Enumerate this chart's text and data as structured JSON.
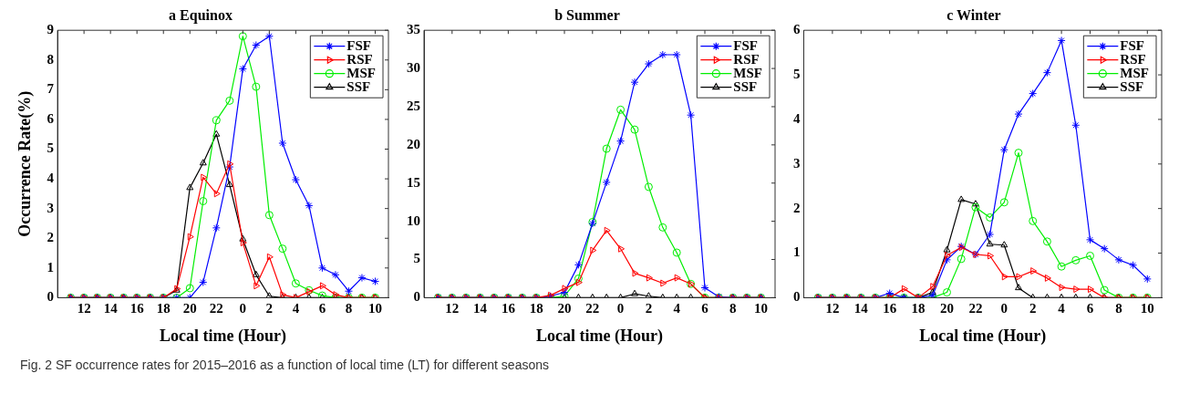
{
  "chart_data": [
    {
      "type": "line",
      "title": "a Equinox",
      "xlabel": "Local time (Hour)",
      "ylabel": "Occurrence Rate(%)",
      "x": [
        "--01-01T11:00",
        "--01-01T12:00",
        "--01-01T13:00",
        "--01-01T14:00",
        "--01-01T15:00",
        "--01-01T16:00",
        "--01-01T17:00",
        "--01-01T18:00",
        "--01-01T19:00",
        "--01-01T20:00",
        "--01-01T21:00",
        "--01-01T22:00",
        "--01-01T23:00",
        "--01-02T00:00",
        "--01-02T01:00",
        "--01-02T02:00",
        "--01-02T03:00",
        "--01-02T04:00",
        "--01-02T05:00",
        "--01-02T06:00",
        "--01-02T07:00",
        "--01-02T08:00",
        "--01-02T09:00",
        "--01-02T10:00"
      ],
      "xlim": [
        "--01-01T10:00",
        "--01-02T11:00"
      ],
      "xticks": [
        {
          "value": "--01-01T12:00",
          "label": "12"
        },
        {
          "value": "--01-01T14:00",
          "label": "14"
        },
        {
          "value": "--01-01T16:00",
          "label": "16"
        },
        {
          "value": "--01-01T18:00",
          "label": "18"
        },
        {
          "value": "--01-01T20:00",
          "label": "20"
        },
        {
          "value": "--01-01T22:00",
          "label": "22"
        },
        {
          "value": "--01-02T00:00",
          "label": "0"
        },
        {
          "value": "--01-02T02:00",
          "label": "2"
        },
        {
          "value": "--01-02T04:00",
          "label": "4"
        },
        {
          "value": "--01-02T06:00",
          "label": "6"
        },
        {
          "value": "--01-02T08:00",
          "label": "8"
        },
        {
          "value": "--01-02T10:00",
          "label": "10"
        }
      ],
      "ylim": [
        0,
        9
      ],
      "yticks": [
        0,
        1,
        2,
        3,
        4,
        5,
        6,
        7,
        8,
        9
      ],
      "legend": "top right",
      "annotations": [
        "Fig. 2 SF occurrence rates for 2015–2016 as a function of local time (LT) for different seasons"
      ],
      "series": [
        {
          "name": "FSF",
          "color": "#0000ff",
          "marker": "cross",
          "values": [
            0,
            0,
            0,
            0,
            0,
            0,
            0,
            0,
            0,
            0,
            0.52,
            2.35,
            4.4,
            7.7,
            8.5,
            8.8,
            5.2,
            3.97,
            3.1,
            1.0,
            0.77,
            0.22,
            0.67,
            0.55
          ]
        },
        {
          "name": "RSF",
          "color": "#ff0000",
          "marker": "triangle",
          "values": [
            0,
            0,
            0,
            0,
            0,
            0,
            0,
            0,
            0.3,
            2.05,
            4.05,
            3.5,
            4.5,
            1.85,
            0.4,
            1.37,
            0.1,
            0,
            0.2,
            0.4,
            0.1,
            0,
            0,
            0
          ]
        },
        {
          "name": "MSF",
          "color": "#00ee00",
          "marker": "circle",
          "values": [
            0,
            0,
            0,
            0,
            0,
            0,
            0,
            0,
            0,
            0.32,
            3.25,
            5.97,
            6.63,
            8.8,
            7.1,
            2.78,
            1.65,
            0.48,
            0.25,
            0.07,
            0,
            0,
            0,
            0
          ]
        },
        {
          "name": "SSF",
          "color": "#000000",
          "marker": "triangle",
          "values": [
            0,
            0,
            0,
            0,
            0,
            0,
            0,
            0,
            0.25,
            3.7,
            4.53,
            5.5,
            3.8,
            1.97,
            0.77,
            0.05,
            0,
            0,
            0,
            0,
            0,
            0,
            0,
            0
          ]
        }
      ]
    },
    {
      "type": "line",
      "title": "b Summer",
      "xlabel": "Local time (Hour)",
      "x": [
        "--01-01T11:00",
        "--01-01T12:00",
        "--01-01T13:00",
        "--01-01T14:00",
        "--01-01T15:00",
        "--01-01T16:00",
        "--01-01T17:00",
        "--01-01T18:00",
        "--01-01T19:00",
        "--01-01T20:00",
        "--01-01T21:00",
        "--01-01T22:00",
        "--01-01T23:00",
        "--01-02T00:00",
        "--01-02T01:00",
        "--01-02T02:00",
        "--01-02T03:00",
        "--01-02T04:00",
        "--01-02T05:00",
        "--01-02T06:00",
        "--01-02T07:00",
        "--01-02T08:00",
        "--01-02T09:00",
        "--01-02T10:00"
      ],
      "xlim": [
        "--01-01T10:00",
        "--01-02T11:00"
      ],
      "xticks": [
        {
          "value": "--01-01T12:00",
          "label": "12"
        },
        {
          "value": "--01-01T14:00",
          "label": "14"
        },
        {
          "value": "--01-01T16:00",
          "label": "16"
        },
        {
          "value": "--01-01T18:00",
          "label": "18"
        },
        {
          "value": "--01-01T20:00",
          "label": "20"
        },
        {
          "value": "--01-01T22:00",
          "label": "22"
        },
        {
          "value": "--01-02T00:00",
          "label": "0"
        },
        {
          "value": "--01-02T02:00",
          "label": "2"
        },
        {
          "value": "--01-02T04:00",
          "label": "4"
        },
        {
          "value": "--01-02T06:00",
          "label": "6"
        },
        {
          "value": "--01-02T08:00",
          "label": "8"
        },
        {
          "value": "--01-02T10:00",
          "label": "10"
        }
      ],
      "ylim": [
        0,
        35
      ],
      "yticks": [
        0,
        5,
        10,
        15,
        20,
        25,
        30,
        35
      ],
      "legend": "top right",
      "series": [
        {
          "name": "FSF",
          "color": "#0000ff",
          "marker": "cross",
          "values": [
            0,
            0,
            0,
            0,
            0,
            0,
            0,
            0,
            0.2,
            0.7,
            4.3,
            9.7,
            15.1,
            20.5,
            28.2,
            30.6,
            31.8,
            31.8,
            23.9,
            1.3,
            0.1,
            0,
            0,
            0
          ]
        },
        {
          "name": "RSF",
          "color": "#ff0000",
          "marker": "triangle",
          "values": [
            0,
            0,
            0,
            0,
            0,
            0,
            0,
            0,
            0.3,
            1.2,
            2.0,
            6.2,
            8.8,
            6.4,
            3.2,
            2.6,
            1.9,
            2.6,
            1.8,
            0,
            0,
            0,
            0,
            0
          ]
        },
        {
          "name": "MSF",
          "color": "#00ee00",
          "marker": "circle",
          "values": [
            0,
            0,
            0,
            0,
            0,
            0,
            0,
            0,
            0,
            0.2,
            2.5,
            9.9,
            19.5,
            24.6,
            22.0,
            14.5,
            9.2,
            5.9,
            1.8,
            0,
            0,
            0,
            0,
            0
          ]
        },
        {
          "name": "SSF",
          "color": "#000000",
          "marker": "triangle",
          "values": [
            0,
            0,
            0,
            0,
            0,
            0,
            0,
            0,
            0,
            0,
            0,
            0,
            0,
            0,
            0.5,
            0.2,
            0,
            0,
            0,
            0,
            0,
            0,
            0,
            0
          ]
        }
      ]
    },
    {
      "type": "line",
      "title": "c Winter",
      "xlabel": "Local time (Hour)",
      "x": [
        "--01-01T11:00",
        "--01-01T12:00",
        "--01-01T13:00",
        "--01-01T14:00",
        "--01-01T15:00",
        "--01-01T16:00",
        "--01-01T17:00",
        "--01-01T18:00",
        "--01-01T19:00",
        "--01-01T20:00",
        "--01-01T21:00",
        "--01-01T22:00",
        "--01-01T23:00",
        "--01-02T00:00",
        "--01-02T01:00",
        "--01-02T02:00",
        "--01-02T03:00",
        "--01-02T04:00",
        "--01-02T05:00",
        "--01-02T06:00",
        "--01-02T07:00",
        "--01-02T08:00",
        "--01-02T09:00",
        "--01-02T10:00"
      ],
      "xlim": [
        "--01-01T10:00",
        "--01-02T11:00"
      ],
      "xticks": [
        {
          "value": "--01-01T12:00",
          "label": "12"
        },
        {
          "value": "--01-01T14:00",
          "label": "14"
        },
        {
          "value": "--01-01T16:00",
          "label": "16"
        },
        {
          "value": "--01-01T18:00",
          "label": "18"
        },
        {
          "value": "--01-01T20:00",
          "label": "20"
        },
        {
          "value": "--01-01T22:00",
          "label": "22"
        },
        {
          "value": "--01-02T00:00",
          "label": "0"
        },
        {
          "value": "--01-02T02:00",
          "label": "2"
        },
        {
          "value": "--01-02T04:00",
          "label": "4"
        },
        {
          "value": "--01-02T06:00",
          "label": "6"
        },
        {
          "value": "--01-02T08:00",
          "label": "8"
        },
        {
          "value": "--01-02T10:00",
          "label": "10"
        }
      ],
      "ylim": [
        0,
        6
      ],
      "yticks": [
        0,
        1,
        2,
        3,
        4,
        5,
        6
      ],
      "legend": "top right",
      "series": [
        {
          "name": "FSF",
          "color": "#0000ff",
          "marker": "cross",
          "values": [
            0,
            0,
            0,
            0,
            0,
            0.1,
            0,
            0,
            0.05,
            0.85,
            1.15,
            0.97,
            1.42,
            3.32,
            4.12,
            4.58,
            5.05,
            5.77,
            3.87,
            1.3,
            1.1,
            0.85,
            0.73,
            0.42
          ]
        },
        {
          "name": "RSF",
          "color": "#ff0000",
          "marker": "triangle",
          "values": [
            0,
            0,
            0,
            0,
            0,
            0,
            0.2,
            0,
            0.25,
            0.95,
            1.13,
            0.97,
            0.94,
            0.47,
            0.47,
            0.6,
            0.44,
            0.23,
            0.19,
            0.19,
            0,
            0,
            0,
            0
          ]
        },
        {
          "name": "MSF",
          "color": "#00ee00",
          "marker": "circle",
          "values": [
            0,
            0,
            0,
            0,
            0,
            0,
            0,
            0,
            0,
            0.12,
            0.87,
            2.03,
            1.8,
            2.14,
            3.25,
            1.72,
            1.26,
            0.7,
            0.84,
            0.94,
            0.17,
            0,
            0,
            0
          ]
        },
        {
          "name": "SSF",
          "color": "#000000",
          "marker": "triangle",
          "values": [
            0,
            0,
            0,
            0,
            0,
            0,
            0,
            0,
            0.12,
            1.07,
            2.2,
            2.1,
            1.2,
            1.18,
            0.22,
            0,
            0,
            0,
            0,
            0,
            0,
            0,
            0,
            0
          ]
        }
      ]
    }
  ]
}
